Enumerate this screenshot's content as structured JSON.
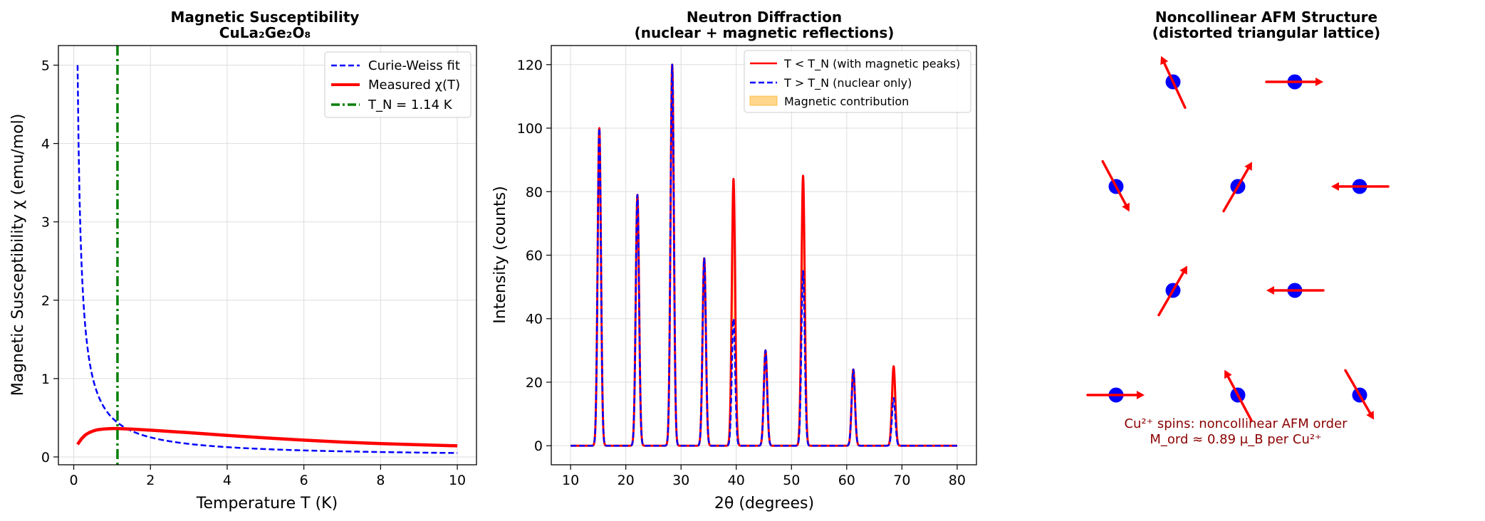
{
  "chart_data": [
    {
      "type": "line",
      "title": "Magnetic Susceptibility",
      "subtitle": "CuLa₂Ge₂O₈",
      "xlabel": "Temperature T (K)",
      "ylabel": "Magnetic Susceptibility χ (emu/mol)",
      "xlim": [
        -0.4,
        10.5
      ],
      "ylim": [
        -0.1,
        5.25
      ],
      "xticks": [
        0,
        2,
        4,
        6,
        8,
        10
      ],
      "yticks": [
        0,
        1,
        2,
        3,
        4,
        5
      ],
      "grid": true,
      "legend_position": "top-right",
      "series": [
        {
          "name": "Curie-Weiss fit",
          "style": "dashed",
          "color": "#0000ff",
          "C": 0.5,
          "theta": 0.0,
          "x_range": [
            0.1,
            10
          ]
        },
        {
          "name": "Measured χ(T)",
          "style": "solid",
          "color": "#ff0000",
          "points": [
            [
              0.1,
              0.16
            ],
            [
              0.2,
              0.23
            ],
            [
              0.3,
              0.28
            ],
            [
              0.4,
              0.31
            ],
            [
              0.5,
              0.33
            ],
            [
              0.6,
              0.345
            ],
            [
              0.7,
              0.352
            ],
            [
              0.8,
              0.357
            ],
            [
              0.9,
              0.36
            ],
            [
              1.0,
              0.362
            ],
            [
              1.14,
              0.362
            ],
            [
              1.5,
              0.355
            ],
            [
              2,
              0.342
            ],
            [
              3,
              0.31
            ],
            [
              4,
              0.275
            ],
            [
              5,
              0.243
            ],
            [
              6,
              0.215
            ],
            [
              7,
              0.19
            ],
            [
              8,
              0.17
            ],
            [
              9,
              0.155
            ],
            [
              10,
              0.142
            ]
          ]
        },
        {
          "name": "T_N = 1.14 K",
          "style": "dashdot",
          "color": "#008000",
          "x": 1.14
        }
      ]
    },
    {
      "type": "line",
      "title": "Neutron Diffraction",
      "subtitle": "(nuclear + magnetic reflections)",
      "xlabel": "2θ (degrees)",
      "ylabel": "Intensity (counts)",
      "xlim": [
        6.5,
        83.5
      ],
      "ylim": [
        -6,
        126
      ],
      "xticks": [
        10,
        20,
        30,
        40,
        50,
        60,
        70,
        80
      ],
      "yticks": [
        0,
        20,
        40,
        60,
        80,
        100,
        120
      ],
      "grid": true,
      "legend_position": "top-right",
      "x_range": [
        10,
        80
      ],
      "peak_width": 0.3,
      "series": [
        {
          "name": "T < T_N (with magnetic peaks)",
          "style": "solid",
          "color": "#ff0000",
          "peaks": [
            [
              15.2,
              100
            ],
            [
              22.1,
              79
            ],
            [
              28.4,
              120
            ],
            [
              34.2,
              59
            ],
            [
              39.5,
              84
            ],
            [
              45.3,
              30
            ],
            [
              52.1,
              85
            ],
            [
              61.2,
              24
            ],
            [
              68.5,
              25
            ]
          ]
        },
        {
          "name": "T > T_N (nuclear only)",
          "style": "dashed",
          "color": "#0000ff",
          "peaks": [
            [
              15.2,
              100
            ],
            [
              22.1,
              79
            ],
            [
              28.4,
              120
            ],
            [
              34.2,
              59
            ],
            [
              39.5,
              40
            ],
            [
              45.3,
              30
            ],
            [
              52.1,
              55
            ],
            [
              61.2,
              24
            ],
            [
              68.5,
              15
            ]
          ]
        },
        {
          "name": "Magnetic contribution",
          "style": "fill",
          "color": "#ffa500"
        }
      ]
    },
    {
      "type": "diagram",
      "title": "Noncollinear AFM Structure",
      "subtitle": "(distorted triangular lattice)",
      "site_color": "#0000ff",
      "spin_color": "#ff0000",
      "spins": [
        {
          "col": 0,
          "row": 0,
          "angle_deg": 115
        },
        {
          "col": 1,
          "row": 0,
          "angle_deg": 0
        },
        {
          "col": 0,
          "row": 1,
          "angle_deg": -62
        },
        {
          "col": 1,
          "row": 1,
          "angle_deg": 60
        },
        {
          "col": 2,
          "row": 1,
          "angle_deg": 180
        },
        {
          "col": 0,
          "row": 2,
          "angle_deg": 60
        },
        {
          "col": 1,
          "row": 2,
          "angle_deg": 180
        },
        {
          "col": 0,
          "row": 3,
          "angle_deg": 0
        },
        {
          "col": 1,
          "row": 3,
          "angle_deg": 118
        },
        {
          "col": 2,
          "row": 3,
          "angle_deg": -60
        }
      ],
      "annotation_line1": "Cu²⁺ spins: noncollinear AFM order",
      "annotation_line2": "M_ord ≈ 0.89 μ_B per Cu²⁺"
    }
  ]
}
